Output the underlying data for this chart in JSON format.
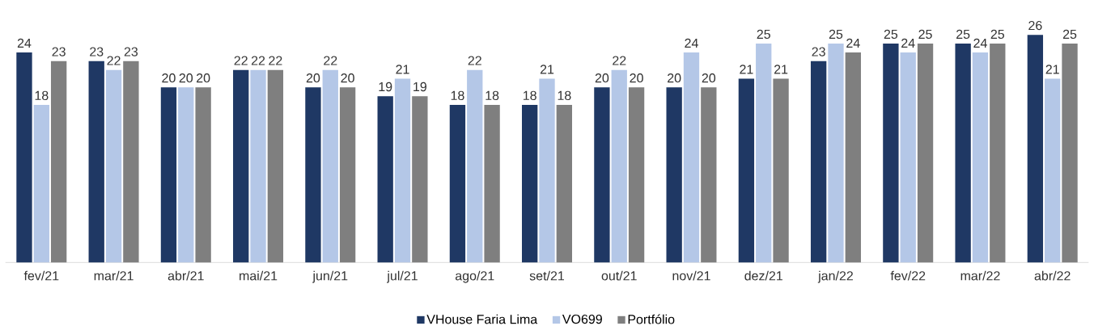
{
  "chart_data": {
    "type": "bar",
    "categories": [
      "fev/21",
      "mar/21",
      "abr/21",
      "mai/21",
      "jun/21",
      "jul/21",
      "ago/21",
      "set/21",
      "out/21",
      "nov/21",
      "dez/21",
      "jan/22",
      "fev/22",
      "mar/22",
      "abr/22"
    ],
    "series": [
      {
        "name": "VHouse Faria Lima",
        "color": "#1f3864",
        "values": [
          24,
          23,
          20,
          22,
          20,
          19,
          18,
          18,
          20,
          20,
          21,
          23,
          25,
          25,
          26
        ]
      },
      {
        "name": "VO699",
        "color": "#b4c7e7",
        "values": [
          18,
          22,
          20,
          22,
          22,
          21,
          22,
          21,
          22,
          24,
          25,
          25,
          24,
          24,
          21
        ]
      },
      {
        "name": "Portfólio",
        "color": "#7f7f7f",
        "values": [
          23,
          23,
          20,
          22,
          20,
          19,
          18,
          18,
          20,
          20,
          21,
          24,
          25,
          25,
          25
        ]
      }
    ],
    "data_labels": true,
    "legend": "bottom"
  }
}
